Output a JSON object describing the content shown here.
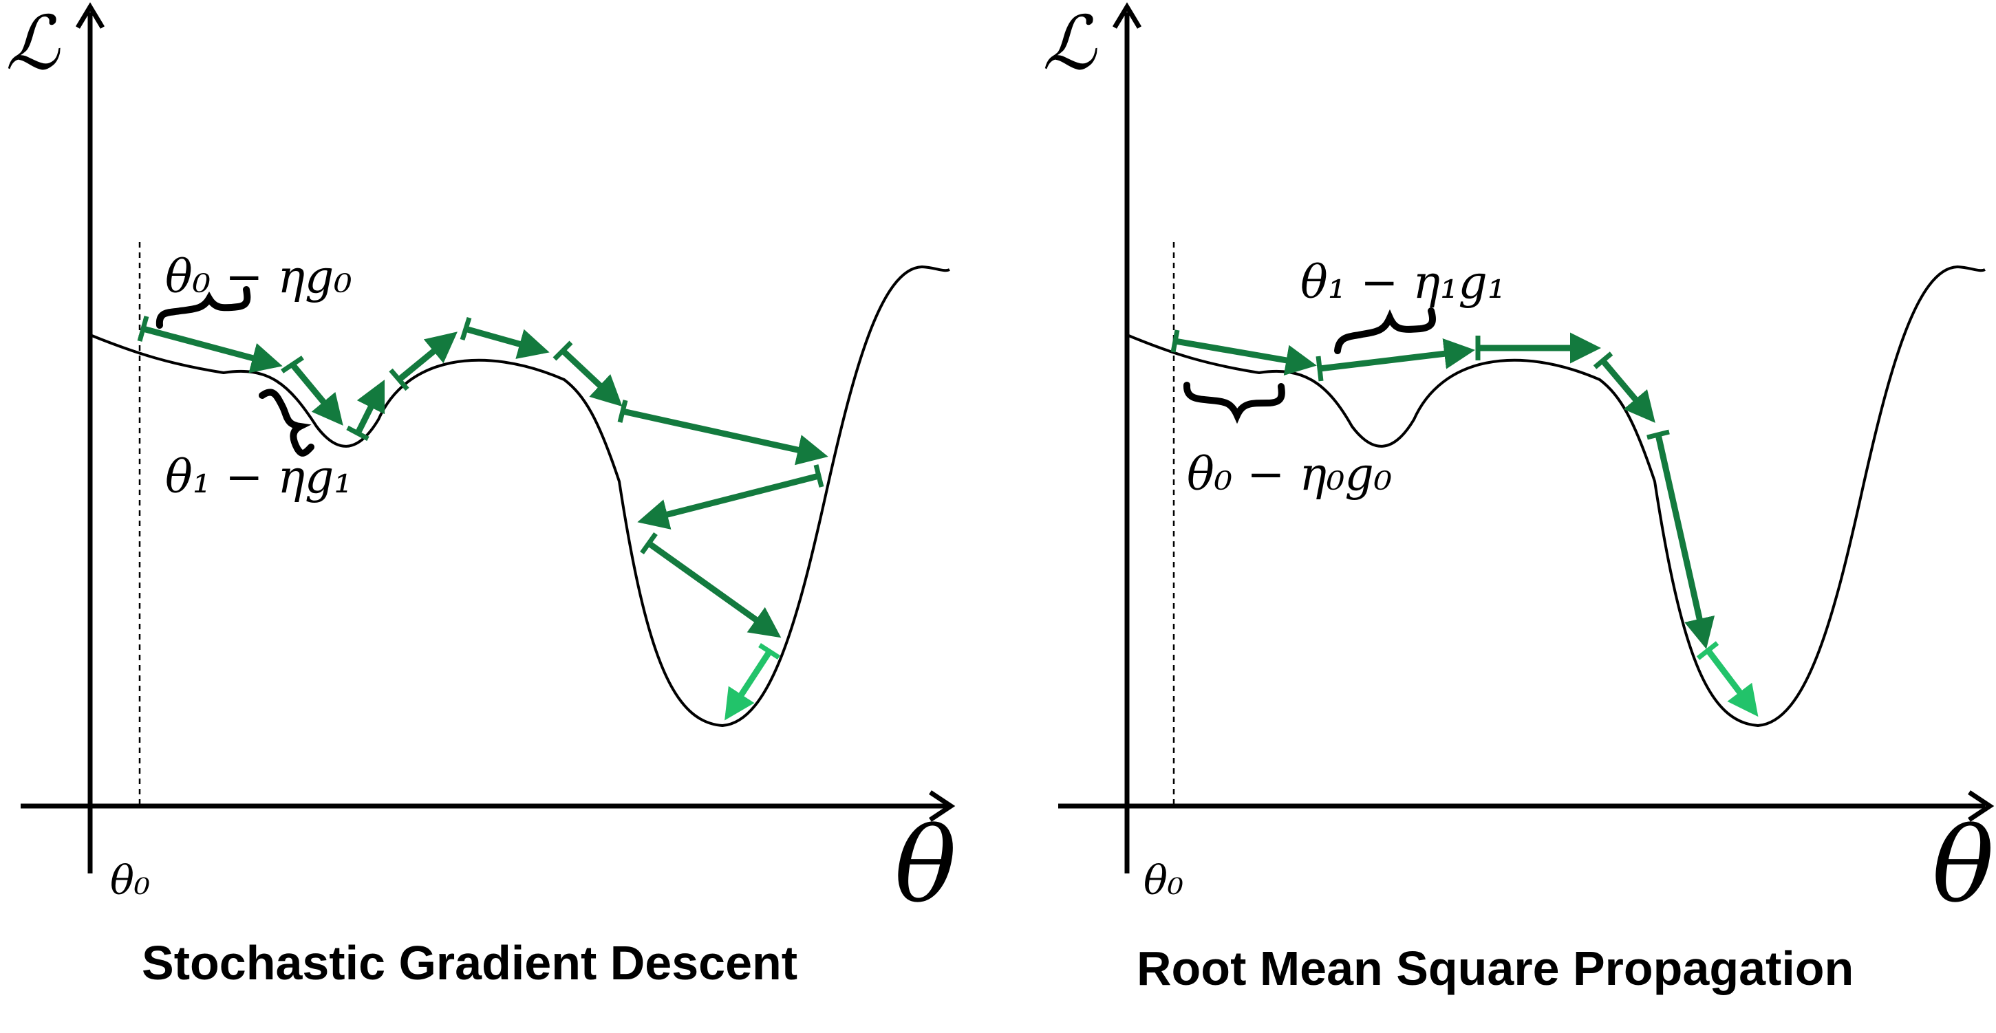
{
  "left_panel": {
    "title": "Stochastic Gradient Descent",
    "y_axis_label": "ℒ",
    "x_axis_label": "θ",
    "theta0_label": "θ₀",
    "annotations": [
      {
        "id": "first_step",
        "text": "θ₀ − ηg₀"
      },
      {
        "id": "second_step",
        "text": "θ₁ − ηg₁"
      }
    ]
  },
  "right_panel": {
    "title": "Root Mean Square Propagation",
    "y_axis_label": "ℒ",
    "x_axis_label": "θ",
    "theta0_label": "θ₀",
    "annotations": [
      {
        "id": "second_step",
        "text": "θ₁ − η₁g₁"
      },
      {
        "id": "first_step",
        "text": "θ₀ − η₀g₀"
      }
    ]
  },
  "colors": {
    "axis": "#000000",
    "curve": "#000000",
    "step_arrow": "#137a3e",
    "final_step_arrow": "#22c36a"
  }
}
